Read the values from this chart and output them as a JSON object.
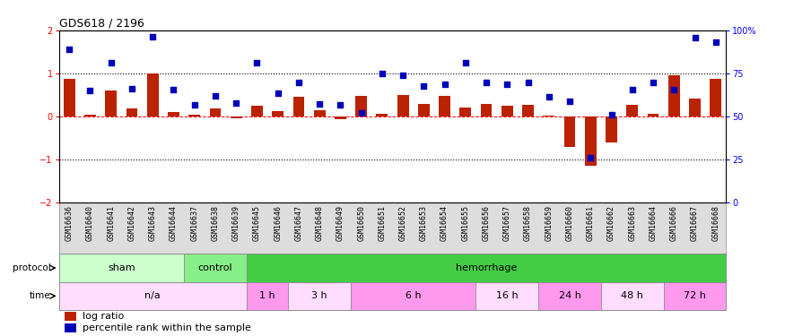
{
  "title": "GDS618 / 2196",
  "samples": [
    "GSM16636",
    "GSM16640",
    "GSM16641",
    "GSM16642",
    "GSM16643",
    "GSM16644",
    "GSM16637",
    "GSM16638",
    "GSM16639",
    "GSM16645",
    "GSM16646",
    "GSM16647",
    "GSM16648",
    "GSM16649",
    "GSM16650",
    "GSM16651",
    "GSM16652",
    "GSM16653",
    "GSM16654",
    "GSM16655",
    "GSM16656",
    "GSM16657",
    "GSM16658",
    "GSM16659",
    "GSM16660",
    "GSM16661",
    "GSM16662",
    "GSM16663",
    "GSM16664",
    "GSM16666",
    "GSM16667",
    "GSM16668"
  ],
  "log_ratio": [
    0.88,
    0.05,
    0.6,
    0.18,
    1.0,
    0.1,
    0.05,
    0.18,
    -0.05,
    0.25,
    0.12,
    0.45,
    0.14,
    -0.06,
    0.48,
    0.07,
    0.5,
    0.3,
    0.48,
    0.21,
    0.3,
    0.25,
    0.28,
    0.02,
    -0.7,
    -1.15,
    -0.6,
    0.28,
    0.06,
    0.95,
    0.42,
    0.88
  ],
  "percentile_left": [
    1.55,
    0.6,
    1.25,
    0.65,
    1.85,
    0.62,
    0.28,
    0.48,
    0.32,
    1.25,
    0.55,
    0.8,
    0.3,
    0.26,
    0.08,
    1.0,
    0.95,
    0.7,
    0.75,
    1.25,
    0.8,
    0.75,
    0.8,
    0.45,
    0.35,
    -0.95,
    0.05,
    0.62,
    0.8,
    0.62,
    1.82,
    1.72
  ],
  "protocol_groups": [
    {
      "label": "sham",
      "start": 0,
      "end": 6,
      "color": "#ccffcc"
    },
    {
      "label": "control",
      "start": 6,
      "end": 9,
      "color": "#88ee88"
    },
    {
      "label": "hemorrhage",
      "start": 9,
      "end": 32,
      "color": "#44cc44"
    }
  ],
  "time_groups": [
    {
      "label": "n/a",
      "start": 0,
      "end": 9,
      "color": "#ffddff"
    },
    {
      "label": "1 h",
      "start": 9,
      "end": 11,
      "color": "#ff99ee"
    },
    {
      "label": "3 h",
      "start": 11,
      "end": 14,
      "color": "#ffddff"
    },
    {
      "label": "6 h",
      "start": 14,
      "end": 20,
      "color": "#ff99ee"
    },
    {
      "label": "16 h",
      "start": 20,
      "end": 23,
      "color": "#ffddff"
    },
    {
      "label": "24 h",
      "start": 23,
      "end": 26,
      "color": "#ff99ee"
    },
    {
      "label": "48 h",
      "start": 26,
      "end": 29,
      "color": "#ffddff"
    },
    {
      "label": "72 h",
      "start": 29,
      "end": 32,
      "color": "#ff99ee"
    }
  ],
  "bar_color": "#bb2200",
  "dot_color": "#0000bb",
  "ylim": [
    -2.0,
    2.0
  ],
  "yticks_left": [
    -2,
    -1,
    0,
    1,
    2
  ],
  "yticks_right": [
    0,
    25,
    50,
    75,
    100
  ],
  "ytick_labels_right": [
    "0",
    "25",
    "50",
    "75",
    "100%"
  ],
  "label_fontsize": 8,
  "tick_fontsize": 7,
  "sample_fontsize": 6
}
